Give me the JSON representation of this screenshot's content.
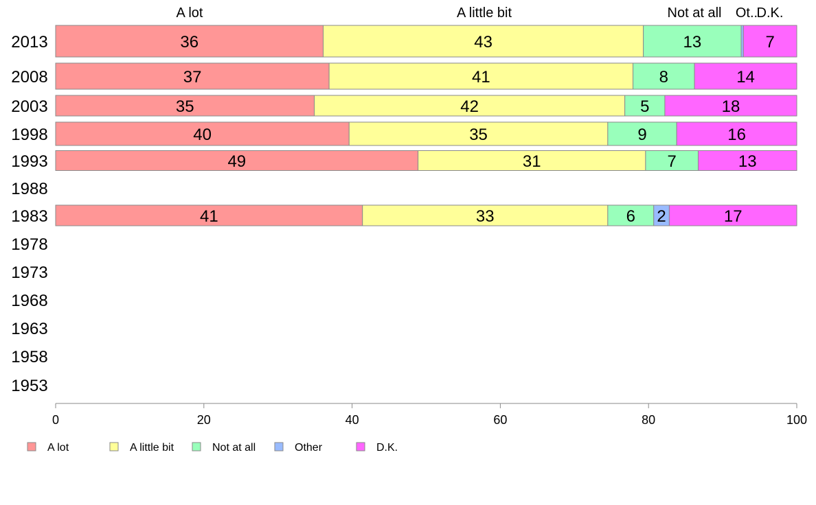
{
  "chart_data": {
    "type": "bar",
    "orientation": "horizontal",
    "stacked": true,
    "title": "",
    "xlabel": "",
    "ylabel": "",
    "xlim": [
      0,
      100
    ],
    "x_ticks": [
      0,
      20,
      40,
      60,
      80,
      100
    ],
    "grid": false,
    "legend_position": "bottom-left",
    "categories": [
      "2013",
      "2008",
      "2003",
      "1998",
      "1993",
      "1988",
      "1983",
      "1978",
      "1973",
      "1968",
      "1963",
      "1958",
      "1953"
    ],
    "series": [
      {
        "name": "A lot",
        "color": "#ff9696",
        "values": [
          36.1,
          36.9,
          34.9,
          39.6,
          48.9,
          null,
          41.4,
          null,
          null,
          null,
          null,
          null,
          null
        ]
      },
      {
        "name": "A little bit",
        "color": "#ffff99",
        "values": [
          43.2,
          41.0,
          41.9,
          34.9,
          30.7,
          null,
          33.1,
          null,
          null,
          null,
          null,
          null,
          null
        ]
      },
      {
        "name": "Not at all",
        "color": "#99ffbb",
        "values": [
          13.2,
          8.3,
          5.4,
          9.3,
          7.1,
          null,
          6.2,
          null,
          null,
          null,
          null,
          null,
          null
        ]
      },
      {
        "name": "Other",
        "color": "#99bbff",
        "values": [
          0.3,
          0.0,
          0.0,
          0.0,
          0.0,
          null,
          2.1,
          null,
          null,
          null,
          null,
          null,
          null
        ]
      },
      {
        "name": "D.K.",
        "color": "#ff66ff",
        "values": [
          7.2,
          13.8,
          17.8,
          16.2,
          13.3,
          null,
          17.2,
          null,
          null,
          null,
          null,
          null,
          null
        ]
      }
    ],
    "segment_labels": [
      [
        "36",
        "43",
        "13",
        "",
        "7"
      ],
      [
        "37",
        "41",
        "8",
        "",
        "14"
      ],
      [
        "35",
        "42",
        "5",
        "",
        "18"
      ],
      [
        "40",
        "35",
        "9",
        "",
        "16"
      ],
      [
        "49",
        "31",
        "7",
        "",
        "13"
      ],
      [
        "",
        "",
        "",
        "",
        ""
      ],
      [
        "41",
        "33",
        "6",
        "2",
        "17"
      ],
      [
        "",
        "",
        "",
        "",
        ""
      ],
      [
        "",
        "",
        "",
        "",
        ""
      ],
      [
        "",
        "",
        "",
        "",
        ""
      ],
      [
        "",
        "",
        "",
        "",
        ""
      ],
      [
        "",
        "",
        "",
        "",
        ""
      ],
      [
        "",
        "",
        "",
        "",
        ""
      ]
    ],
    "top_labels": [
      "A lot",
      "A little bit",
      "Not at all",
      "Ot..",
      "D.K."
    ]
  }
}
